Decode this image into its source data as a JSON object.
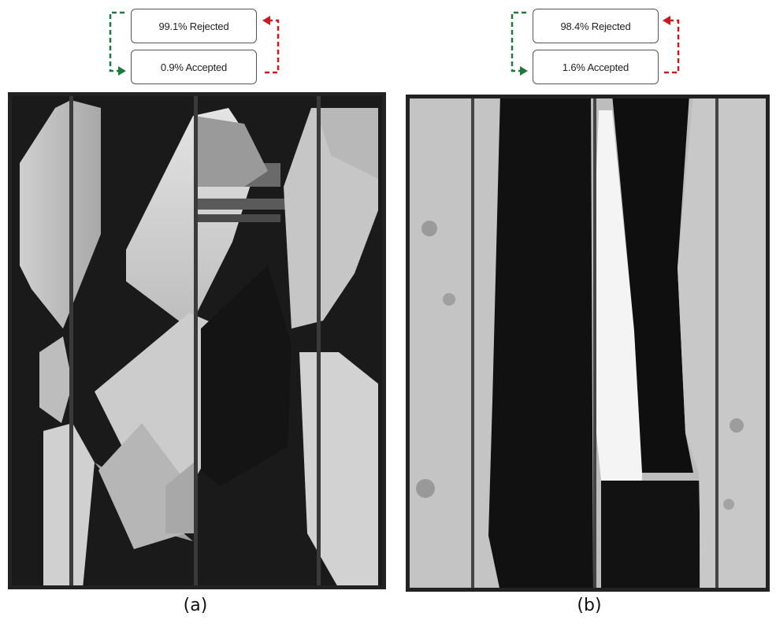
{
  "panels": [
    {
      "rejected_label": "99.1% Rejected",
      "accepted_label": "0.9% Accepted",
      "caption": "(a)"
    },
    {
      "rejected_label": "98.4% Rejected",
      "accepted_label": "1.6% Accepted",
      "caption": "(b)"
    }
  ],
  "colors": {
    "accept_arrow": "#1e7a3a",
    "reject_arrow": "#cc1a1a",
    "box_border": "#555555"
  }
}
